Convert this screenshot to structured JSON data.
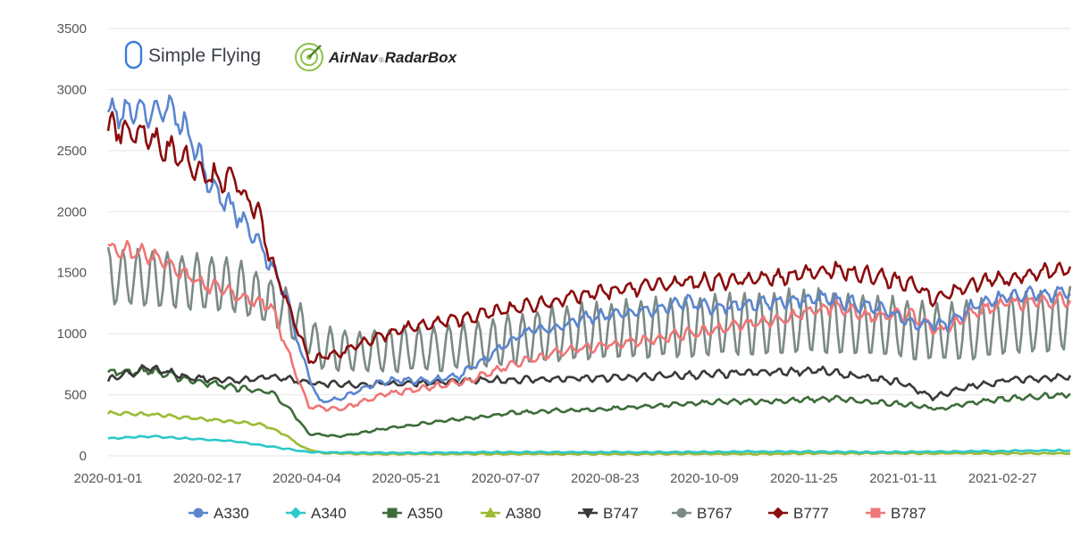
{
  "logos": {
    "simple_flying": "Simple Flying",
    "airnav": "AirNav RadarBox",
    "airnav_main": "AirNav",
    "airnav_sub": "RadarBox"
  },
  "chart_data": {
    "type": "line",
    "title": "",
    "xlabel": "",
    "ylabel": "",
    "ylim": [
      0,
      3500
    ],
    "yticks": [
      0,
      500,
      1000,
      1500,
      2000,
      2500,
      3000,
      3500
    ],
    "x_ticks": [
      "2020-01-01",
      "2020-02-17",
      "2020-04-04",
      "2020-05-21",
      "2020-07-07",
      "2020-08-23",
      "2020-10-09",
      "2020-11-25",
      "2021-01-11",
      "2021-02-27"
    ],
    "x_range": [
      "2020-01-01",
      "2021-03-31"
    ],
    "grid": "horizontal",
    "legend": "bottom",
    "series": [
      {
        "name": "A330",
        "color": "#5b86cf",
        "marker": "circle",
        "x": [
          "2020-01-01",
          "2020-01-10",
          "2020-01-20",
          "2020-01-30",
          "2020-02-09",
          "2020-02-19",
          "2020-03-01",
          "2020-03-10",
          "2020-03-18",
          "2020-03-25",
          "2020-04-02",
          "2020-04-10",
          "2020-04-20",
          "2020-05-01",
          "2020-05-15",
          "2020-06-01",
          "2020-06-15",
          "2020-07-01",
          "2020-07-15",
          "2020-08-01",
          "2020-08-15",
          "2020-09-01",
          "2020-09-15",
          "2020-10-01",
          "2020-10-15",
          "2020-11-01",
          "2020-11-15",
          "2020-12-01",
          "2020-12-15",
          "2021-01-01",
          "2021-01-15",
          "2021-02-01",
          "2021-02-15",
          "2021-03-01",
          "2021-03-15",
          "2021-03-31"
        ],
        "y": [
          2780,
          2840,
          2800,
          2850,
          2620,
          2200,
          2000,
          1820,
          1560,
          1320,
          800,
          440,
          470,
          560,
          620,
          620,
          650,
          840,
          1010,
          1060,
          1140,
          1160,
          1200,
          1260,
          1210,
          1240,
          1270,
          1300,
          1260,
          1200,
          1080,
          1080,
          1250,
          1300,
          1330,
          1340
        ]
      },
      {
        "name": "A340",
        "color": "#2dc8c8",
        "marker": "diamond",
        "x": [
          "2020-01-01",
          "2020-01-20",
          "2020-02-09",
          "2020-03-01",
          "2020-03-20",
          "2020-04-05",
          "2020-05-01",
          "2020-06-01",
          "2020-07-01",
          "2020-08-01",
          "2020-09-01",
          "2020-10-01",
          "2020-11-01",
          "2020-12-01",
          "2021-01-01",
          "2021-02-01",
          "2021-03-01",
          "2021-03-31"
        ],
        "y": [
          140,
          160,
          140,
          120,
          70,
          30,
          25,
          25,
          30,
          30,
          30,
          30,
          35,
          35,
          30,
          35,
          40,
          45
        ]
      },
      {
        "name": "A350",
        "color": "#3d6c3a",
        "marker": "square",
        "x": [
          "2020-01-01",
          "2020-01-20",
          "2020-02-09",
          "2020-03-01",
          "2020-03-18",
          "2020-03-28",
          "2020-04-05",
          "2020-04-20",
          "2020-05-10",
          "2020-06-01",
          "2020-06-20",
          "2020-07-10",
          "2020-08-01",
          "2020-08-20",
          "2020-09-15",
          "2020-10-15",
          "2020-11-15",
          "2020-12-10",
          "2020-12-25",
          "2021-01-15",
          "2021-01-28",
          "2021-02-10",
          "2021-03-01",
          "2021-03-31"
        ],
        "y": [
          680,
          700,
          620,
          560,
          520,
          360,
          180,
          160,
          220,
          270,
          310,
          350,
          370,
          380,
          410,
          440,
          450,
          470,
          440,
          420,
          380,
          430,
          470,
          500
        ]
      },
      {
        "name": "A380",
        "color": "#9abb33",
        "marker": "triangle",
        "x": [
          "2020-01-01",
          "2020-01-20",
          "2020-02-09",
          "2020-03-01",
          "2020-03-15",
          "2020-03-25",
          "2020-04-02",
          "2020-04-10",
          "2020-05-01",
          "2020-06-01",
          "2020-07-01",
          "2020-08-01",
          "2020-09-01",
          "2020-10-01",
          "2020-11-01",
          "2020-12-01",
          "2021-01-01",
          "2021-02-01",
          "2021-03-01",
          "2021-03-31"
        ],
        "y": [
          350,
          340,
          310,
          280,
          250,
          170,
          70,
          25,
          15,
          15,
          15,
          15,
          15,
          15,
          15,
          20,
          20,
          20,
          20,
          20
        ]
      },
      {
        "name": "B747",
        "color": "#3a3a3a",
        "marker": "triangle-down",
        "x": [
          "2020-01-01",
          "2020-01-20",
          "2020-02-09",
          "2020-03-01",
          "2020-03-20",
          "2020-04-05",
          "2020-04-20",
          "2020-05-10",
          "2020-06-01",
          "2020-07-01",
          "2020-08-01",
          "2020-09-01",
          "2020-10-01",
          "2020-11-01",
          "2020-12-01",
          "2020-12-20",
          "2021-01-10",
          "2021-01-25",
          "2021-02-10",
          "2021-03-01",
          "2021-03-31"
        ],
        "y": [
          620,
          720,
          640,
          620,
          650,
          600,
          580,
          590,
          600,
          620,
          630,
          640,
          660,
          680,
          700,
          650,
          600,
          480,
          560,
          620,
          650
        ]
      },
      {
        "name": "B767",
        "color": "#7c8a85",
        "marker": "circle",
        "x": [
          "2020-01-01",
          "2020-02-01",
          "2020-03-01",
          "2020-03-25",
          "2020-04-10",
          "2020-05-01",
          "2020-06-01",
          "2020-07-01",
          "2020-08-01",
          "2020-09-01",
          "2020-10-01",
          "2020-11-01",
          "2020-12-01",
          "2021-01-01",
          "2021-02-01",
          "2021-03-01",
          "2021-03-31"
        ],
        "y": [
          1470,
          1430,
          1390,
          1200,
          880,
          850,
          880,
          920,
          1000,
          1030,
          1050,
          1080,
          1100,
          1060,
          1000,
          1070,
          1120
        ],
        "weekly_amplitude": [
          230,
          230,
          220,
          180,
          170,
          170,
          190,
          200,
          230,
          240,
          250,
          260,
          260,
          250,
          240,
          250,
          260
        ]
      },
      {
        "name": "B777",
        "color": "#8b0d0d",
        "marker": "diamond",
        "x": [
          "2020-01-01",
          "2020-01-15",
          "2020-02-01",
          "2020-02-17",
          "2020-03-01",
          "2020-03-12",
          "2020-03-18",
          "2020-03-28",
          "2020-04-05",
          "2020-04-20",
          "2020-05-01",
          "2020-05-20",
          "2020-06-15",
          "2020-07-15",
          "2020-08-15",
          "2020-09-15",
          "2020-10-15",
          "2020-11-15",
          "2020-12-05",
          "2020-12-25",
          "2021-01-15",
          "2021-01-25",
          "2021-02-15",
          "2021-03-10",
          "2021-03-31"
        ],
        "y": [
          2680,
          2650,
          2500,
          2300,
          2250,
          1980,
          1600,
          1150,
          780,
          840,
          940,
          1040,
          1120,
          1220,
          1320,
          1400,
          1430,
          1460,
          1530,
          1480,
          1410,
          1280,
          1420,
          1480,
          1520
        ]
      },
      {
        "name": "B787",
        "color": "#ef7676",
        "marker": "square",
        "x": [
          "2020-01-01",
          "2020-01-20",
          "2020-02-09",
          "2020-03-01",
          "2020-03-18",
          "2020-03-25",
          "2020-04-05",
          "2020-04-20",
          "2020-05-10",
          "2020-06-01",
          "2020-06-20",
          "2020-07-10",
          "2020-08-01",
          "2020-08-20",
          "2020-09-15",
          "2020-10-15",
          "2020-11-15",
          "2020-12-10",
          "2020-12-25",
          "2021-01-15",
          "2021-01-28",
          "2021-02-10",
          "2021-03-01",
          "2021-03-31"
        ],
        "y": [
          1700,
          1650,
          1450,
          1320,
          1220,
          900,
          400,
          380,
          500,
          560,
          620,
          750,
          850,
          900,
          960,
          1040,
          1120,
          1230,
          1140,
          1150,
          1020,
          1150,
          1250,
          1280
        ]
      }
    ]
  }
}
